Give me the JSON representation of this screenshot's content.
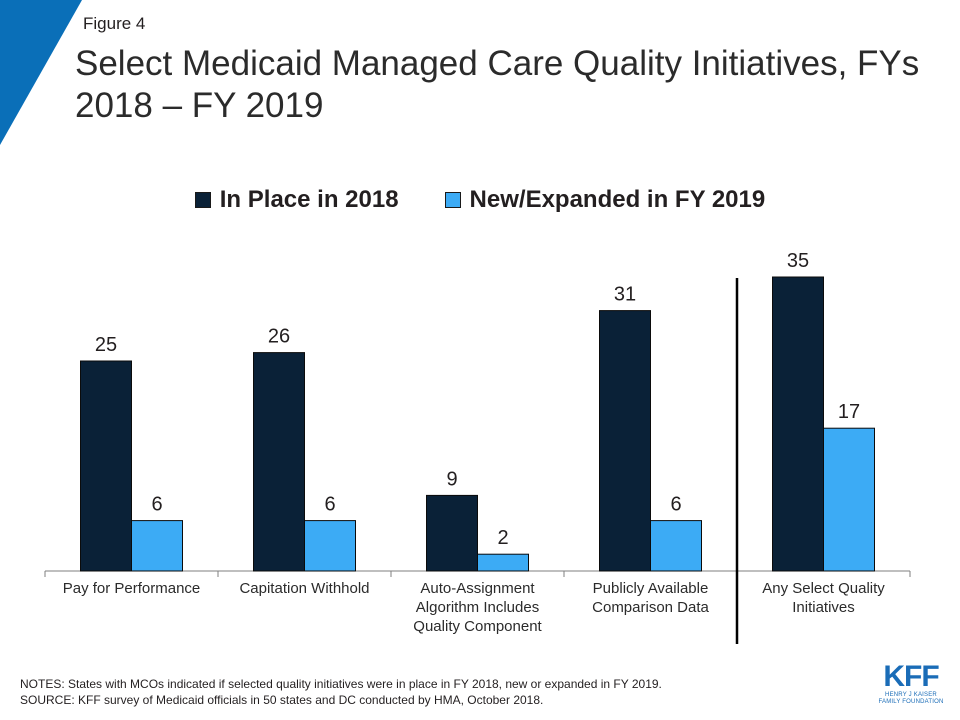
{
  "figure_label": "Figure 4",
  "title": "Select Medicaid Managed Care Quality Initiatives, FYs 2018 – FY 2019",
  "colors": {
    "accent": "#0a6fb8",
    "series_dark": "#0a2137",
    "series_light": "#3cabf5"
  },
  "chart_data": {
    "type": "bar",
    "title": "Select Medicaid Managed Care Quality Initiatives, FYs 2018 – FY 2019",
    "categories": [
      [
        "Pay for Performance"
      ],
      [
        "Capitation Withhold"
      ],
      [
        "Auto-Assignment",
        "Algorithm Includes",
        "Quality Component"
      ],
      [
        "Publicly Available",
        "Comparison Data"
      ],
      [
        "Any Select Quality",
        "Initiatives"
      ]
    ],
    "series": [
      {
        "name": "In Place in 2018",
        "color": "#0a2137",
        "values": [
          25,
          26,
          9,
          31,
          35
        ]
      },
      {
        "name": "New/Expanded in FY 2019",
        "color": "#3cabf5",
        "values": [
          6,
          6,
          2,
          6,
          17
        ]
      }
    ],
    "ylim": [
      0,
      35
    ],
    "grid": false,
    "legend_position": "top-center",
    "xlabel": "",
    "ylabel": ""
  },
  "notes": {
    "line1": "NOTES: States with MCOs indicated if selected quality initiatives were in place in FY 2018, new or expanded in FY 2019.",
    "line2": "SOURCE: KFF survey of Medicaid officials in 50 states and DC conducted by HMA, October 2018."
  },
  "logo": {
    "text": "KFF",
    "subtext": "HENRY J KAISER\nFAMILY FOUNDATION"
  }
}
